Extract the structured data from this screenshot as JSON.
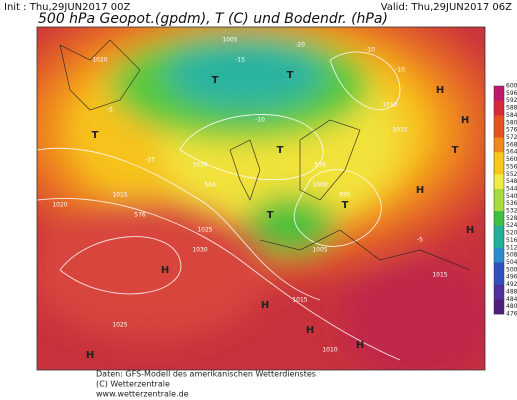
{
  "header": {
    "init": "Init : Thu,29JUN2017 00Z",
    "valid": "Valid: Thu,29JUN2017 06Z",
    "title": "500 hPa Geopot.(gpdm), T (C) und Bodendr. (hPa)"
  },
  "legend": {
    "levels": [
      600,
      596,
      592,
      588,
      584,
      580,
      576,
      572,
      568,
      564,
      560,
      556,
      552,
      548,
      544,
      540,
      536,
      532,
      528,
      524,
      520,
      516,
      512,
      508,
      504,
      500,
      496,
      492,
      488,
      484,
      480,
      476
    ]
  },
  "map_labels": [
    "H",
    "H",
    "H",
    "H",
    "H",
    "H",
    "H",
    "H",
    "H",
    "T",
    "T",
    "T",
    "T",
    "T",
    "T",
    "T",
    "1020",
    "1015",
    "1010",
    "1005",
    "1000",
    "995",
    "1025",
    "1030",
    "1015",
    "1010",
    "1005",
    "1015",
    "1020",
    "1025",
    "1010",
    "1015",
    "-15",
    "-10",
    "-5",
    "-10",
    "-15",
    "-20",
    "-10",
    "-5",
    "564",
    "576",
    "558"
  ],
  "footer": {
    "line1": "Daten: GFS-Modell des amerikanischen Wetterdienstes",
    "line2": "(C) Wetterzentrale",
    "line3": "www.wetterzentrale.de"
  }
}
